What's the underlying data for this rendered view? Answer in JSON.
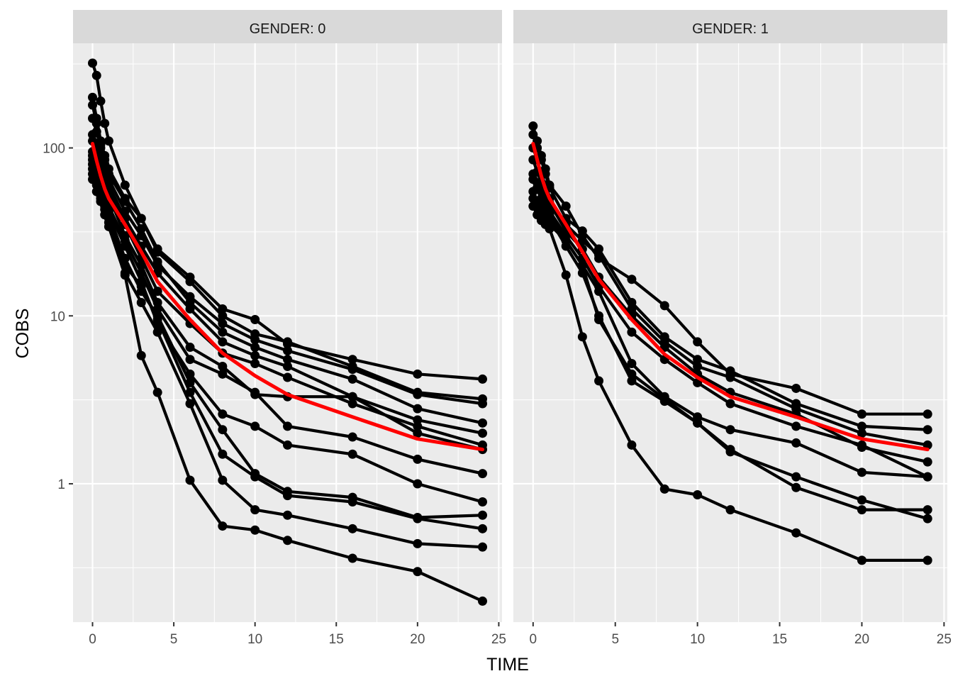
{
  "chart_data": {
    "type": "line",
    "facet_variable": "GENDER",
    "xlabel": "TIME",
    "ylabel": "COBS",
    "y_scale": "log10",
    "xlim": [
      -1.2,
      25.2
    ],
    "ylim": [
      0.15,
      420
    ],
    "x_ticks": [
      0,
      5,
      10,
      15,
      20,
      25
    ],
    "x_tick_labels": [
      "0",
      "5",
      "10",
      "15",
      "20",
      "25"
    ],
    "y_ticks": [
      1,
      10,
      100
    ],
    "y_tick_labels": [
      "1",
      "10",
      "100"
    ],
    "grid": true,
    "subject_line_color": "#000000",
    "mean_line_color": "#ff0000",
    "panel_background": "#ebebeb",
    "strip_background": "#d9d9d9",
    "time_points": [
      0,
      0.25,
      0.5,
      0.75,
      1,
      2,
      3,
      4,
      6,
      8,
      10,
      12,
      16,
      20,
      24
    ],
    "panels": [
      {
        "strip_label": "GENDER: 0",
        "mean_curve": [
          106,
          84,
          68,
          57,
          50,
          35,
          24,
          16,
          9.5,
          6.0,
          4.4,
          3.4,
          2.5,
          1.85,
          1.6
        ],
        "subjects": [
          [
            320,
            270,
            190,
            140,
            110,
            60,
            38,
            25,
            17,
            11,
            9.5,
            6.8,
            5.5,
            4.5,
            4.2
          ],
          [
            200,
            150,
            110,
            90,
            75,
            50,
            38,
            24,
            16,
            10,
            7.8,
            7.0,
            5.0,
            3.5,
            3.2
          ],
          [
            180,
            140,
            105,
            80,
            65,
            42,
            30,
            20,
            13,
            9.0,
            7.2,
            6.2,
            4.8,
            3.4,
            3.0
          ],
          [
            150,
            125,
            100,
            85,
            70,
            48,
            33,
            21,
            12,
            8.0,
            6.5,
            5.5,
            4.2,
            2.8,
            2.3
          ],
          [
            120,
            100,
            85,
            72,
            60,
            38,
            26,
            18,
            11,
            7.0,
            5.8,
            5.0,
            3.3,
            2.4,
            2.0
          ],
          [
            110,
            95,
            80,
            65,
            55,
            35,
            22,
            14,
            9.0,
            6.0,
            5.2,
            4.3,
            3.0,
            2.2,
            1.7
          ],
          [
            95,
            80,
            70,
            62,
            52,
            30,
            20,
            12,
            6.5,
            5.0,
            3.4,
            3.3,
            3.3,
            2.0,
            1.6
          ],
          [
            90,
            75,
            65,
            55,
            45,
            28,
            18,
            11,
            5.5,
            4.5,
            3.5,
            2.2,
            1.9,
            1.4,
            1.15
          ],
          [
            85,
            72,
            60,
            52,
            42,
            26,
            16,
            9.0,
            4.5,
            2.6,
            2.2,
            1.7,
            1.5,
            1.0,
            0.78
          ],
          [
            80,
            68,
            55,
            47,
            40,
            22,
            14,
            10,
            4.0,
            2.1,
            1.15,
            0.9,
            0.83,
            0.63,
            0.65
          ],
          [
            75,
            65,
            52,
            45,
            38,
            20,
            15,
            9.5,
            3.5,
            1.5,
            1.1,
            0.85,
            0.78,
            0.62,
            0.54
          ],
          [
            70,
            60,
            50,
            43,
            36,
            18,
            12,
            8.0,
            3.0,
            1.05,
            0.7,
            0.65,
            0.54,
            0.44,
            0.42
          ],
          [
            65,
            55,
            48,
            40,
            34,
            17.5,
            5.8,
            3.5,
            1.05,
            0.56,
            0.53,
            0.46,
            0.36,
            0.3,
            0.2
          ]
        ]
      },
      {
        "strip_label": "GENDER: 1",
        "mean_curve": [
          106,
          85,
          68,
          57,
          50,
          35,
          24,
          16.5,
          9.5,
          5.9,
          4.3,
          3.3,
          2.5,
          1.85,
          1.6
        ],
        "subjects": [
          [
            135,
            110,
            90,
            75,
            60,
            45,
            30,
            22,
            16.5,
            11.5,
            7.0,
            4.5,
            3.7,
            2.6,
            2.6
          ],
          [
            120,
            100,
            85,
            70,
            58,
            38,
            32,
            25,
            12,
            7.5,
            5.5,
            4.7,
            3.0,
            2.2,
            2.1
          ],
          [
            100,
            85,
            70,
            60,
            50,
            35,
            28,
            23,
            11,
            7.0,
            5.0,
            4.3,
            2.8,
            2.0,
            1.7
          ],
          [
            85,
            72,
            62,
            53,
            47,
            32,
            25,
            17,
            10,
            6.5,
            4.5,
            3.5,
            2.6,
            1.65,
            1.35
          ],
          [
            70,
            62,
            55,
            47,
            42,
            30,
            22,
            15,
            8.0,
            5.5,
            4.0,
            3.0,
            2.2,
            1.7,
            1.1
          ],
          [
            65,
            58,
            50,
            44,
            40,
            28,
            20,
            14,
            5.2,
            3.3,
            2.5,
            2.1,
            1.75,
            1.17,
            1.1
          ],
          [
            55,
            48,
            43,
            40,
            38,
            26,
            18,
            10,
            4.1,
            3.1,
            2.3,
            1.55,
            1.1,
            0.8,
            0.62
          ],
          [
            50,
            45,
            40,
            37,
            35,
            28,
            20,
            9.5,
            4.5,
            3.2,
            2.3,
            1.6,
            0.95,
            0.7,
            0.7
          ],
          [
            45,
            40,
            37,
            35,
            33,
            17.5,
            7.5,
            4.1,
            1.7,
            0.93,
            0.86,
            0.7,
            0.51,
            0.35,
            0.35
          ]
        ]
      }
    ]
  }
}
